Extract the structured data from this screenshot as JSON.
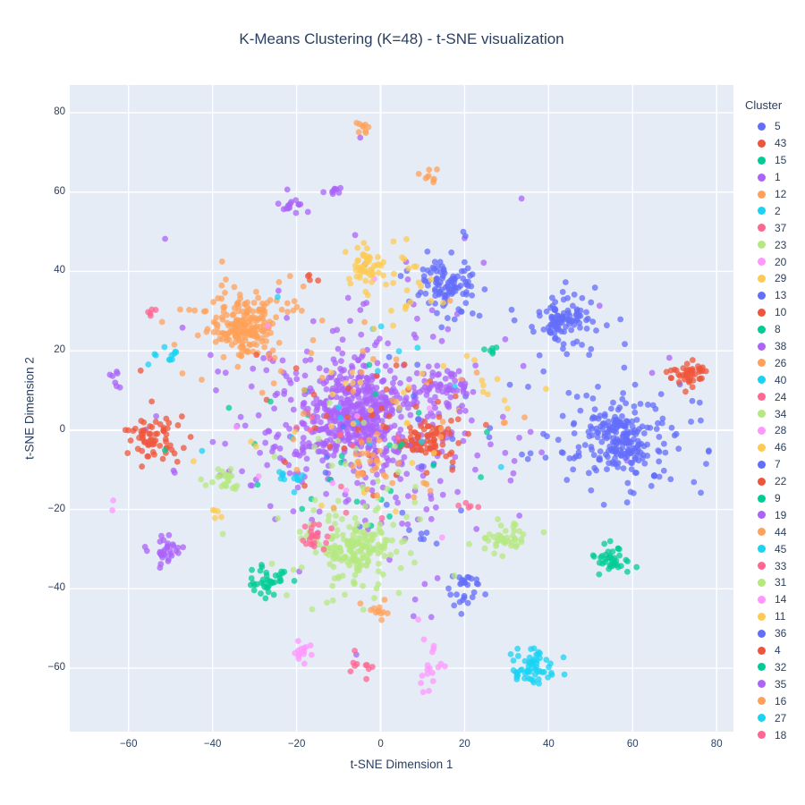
{
  "chart_data": {
    "type": "scatter",
    "title": "K-Means Clustering (K=48) - t-SNE visualization",
    "xlabel": "t-SNE Dimension 1",
    "ylabel": "t-SNE Dimension 2",
    "legend_title": "Cluster",
    "xlim": [
      -74,
      84
    ],
    "ylim": [
      -76,
      87
    ],
    "xticks": [
      -60,
      -40,
      -20,
      0,
      20,
      40,
      60,
      80
    ],
    "xtick_labels": [
      "−60",
      "−40",
      "−20",
      "0",
      "20",
      "40",
      "60",
      "80"
    ],
    "yticks": [
      -60,
      -40,
      -20,
      0,
      20,
      40,
      60,
      80
    ],
    "ytick_labels": [
      "−60",
      "−40",
      "−20",
      "0",
      "20",
      "40",
      "60",
      "80"
    ],
    "grid": true,
    "legend_position": "right",
    "colors": {
      "plot_background": "#E5ECF6",
      "grid": "#FFFFFF",
      "text": "#2a3f5f",
      "paper_background": "#FFFFFF"
    },
    "palette": [
      "#636EFA",
      "#EF553B",
      "#00CC96",
      "#AB63FA",
      "#FFA15A",
      "#19D3F3",
      "#FF6692",
      "#B6E880",
      "#FF97FF",
      "#FECB52"
    ],
    "marker": {
      "size": 6.8,
      "opacity": 0.75
    },
    "legend_entries": [
      {
        "label": "5",
        "color": "#636EFA"
      },
      {
        "label": "43",
        "color": "#EF553B"
      },
      {
        "label": "15",
        "color": "#00CC96"
      },
      {
        "label": "1",
        "color": "#AB63FA"
      },
      {
        "label": "12",
        "color": "#FFA15A"
      },
      {
        "label": "2",
        "color": "#19D3F3"
      },
      {
        "label": "37",
        "color": "#FF6692"
      },
      {
        "label": "23",
        "color": "#B6E880"
      },
      {
        "label": "20",
        "color": "#FF97FF"
      },
      {
        "label": "29",
        "color": "#FECB52"
      },
      {
        "label": "13",
        "color": "#636EFA"
      },
      {
        "label": "10",
        "color": "#EF553B"
      },
      {
        "label": "8",
        "color": "#00CC96"
      },
      {
        "label": "38",
        "color": "#AB63FA"
      },
      {
        "label": "26",
        "color": "#FFA15A"
      },
      {
        "label": "40",
        "color": "#19D3F3"
      },
      {
        "label": "24",
        "color": "#FF6692"
      },
      {
        "label": "34",
        "color": "#B6E880"
      },
      {
        "label": "28",
        "color": "#FF97FF"
      },
      {
        "label": "46",
        "color": "#FECB52"
      },
      {
        "label": "7",
        "color": "#636EFA"
      },
      {
        "label": "22",
        "color": "#EF553B"
      },
      {
        "label": "9",
        "color": "#00CC96"
      },
      {
        "label": "19",
        "color": "#AB63FA"
      },
      {
        "label": "44",
        "color": "#FFA15A"
      },
      {
        "label": "45",
        "color": "#19D3F3"
      },
      {
        "label": "33",
        "color": "#FF6692"
      },
      {
        "label": "31",
        "color": "#B6E880"
      },
      {
        "label": "14",
        "color": "#FF97FF"
      },
      {
        "label": "11",
        "color": "#FECB52"
      },
      {
        "label": "36",
        "color": "#636EFA"
      },
      {
        "label": "4",
        "color": "#EF553B"
      },
      {
        "label": "32",
        "color": "#00CC96"
      },
      {
        "label": "35",
        "color": "#AB63FA"
      },
      {
        "label": "16",
        "color": "#FFA15A"
      },
      {
        "label": "27",
        "color": "#19D3F3"
      },
      {
        "label": "18",
        "color": "#FF6692"
      }
    ],
    "clusters": [
      {
        "color": "#AB63FA",
        "cx": -5,
        "cy": 4,
        "sx": 6.5,
        "sy": 5.5,
        "n": 380
      },
      {
        "color": "#AB63FA",
        "cx": -5,
        "cy": 2,
        "sx": 16,
        "sy": 13,
        "n": 320
      },
      {
        "color": "#AB63FA",
        "cx": 0,
        "cy": 8,
        "sx": 30,
        "sy": 24,
        "n": 40
      },
      {
        "color": "#FFA15A",
        "cx": -33,
        "cy": 26,
        "sx": 3.2,
        "sy": 3.0,
        "n": 150
      },
      {
        "color": "#FFA15A",
        "cx": -33,
        "cy": 26,
        "sx": 7.5,
        "sy": 6.5,
        "n": 85
      },
      {
        "color": "#636EFA",
        "cx": 57,
        "cy": -3,
        "sx": 4.5,
        "sy": 4.2,
        "n": 150
      },
      {
        "color": "#636EFA",
        "cx": 57,
        "cy": -3,
        "sx": 9.5,
        "sy": 8.5,
        "n": 110
      },
      {
        "color": "#636EFA",
        "cx": 16,
        "cy": 37,
        "sx": 2.8,
        "sy": 2.6,
        "n": 65
      },
      {
        "color": "#636EFA",
        "cx": 16,
        "cy": 37,
        "sx": 6.0,
        "sy": 5.5,
        "n": 40
      },
      {
        "color": "#636EFA",
        "cx": 43,
        "cy": 28,
        "sx": 2.6,
        "sy": 2.4,
        "n": 75
      },
      {
        "color": "#636EFA",
        "cx": 43,
        "cy": 28,
        "sx": 5.5,
        "sy": 5.0,
        "n": 32
      },
      {
        "color": "#636EFA",
        "cx": 20,
        "cy": -40,
        "sx": 2.3,
        "sy": 2.0,
        "n": 28
      },
      {
        "color": "#636EFA",
        "cx": 10,
        "cy": -27,
        "sx": 1.5,
        "sy": 1.2,
        "n": 6
      },
      {
        "color": "#636EFA",
        "cx": 3,
        "cy": -2,
        "sx": 17,
        "sy": 13,
        "n": 22
      },
      {
        "color": "#EF553B",
        "cx": -54,
        "cy": -2,
        "sx": 3.0,
        "sy": 2.8,
        "n": 55
      },
      {
        "color": "#EF553B",
        "cx": -53,
        "cy": 0,
        "sx": 6.5,
        "sy": 5.5,
        "n": 12
      },
      {
        "color": "#EF553B",
        "cx": 12,
        "cy": -2,
        "sx": 2.6,
        "sy": 2.4,
        "n": 55
      },
      {
        "color": "#EF553B",
        "cx": 7,
        "cy": -1,
        "sx": 6.5,
        "sy": 4.5,
        "n": 35
      },
      {
        "color": "#EF553B",
        "cx": 73,
        "cy": 14,
        "sx": 2.0,
        "sy": 1.7,
        "n": 45
      },
      {
        "color": "#EF553B",
        "cx": -16,
        "cy": 38,
        "sx": 0.9,
        "sy": 0.8,
        "n": 4
      },
      {
        "color": "#EF553B",
        "cx": -2,
        "cy": 6,
        "sx": 15,
        "sy": 13,
        "n": 22
      },
      {
        "color": "#00CC96",
        "cx": -27,
        "cy": -38,
        "sx": 2.4,
        "sy": 2.0,
        "n": 38
      },
      {
        "color": "#00CC96",
        "cx": 54,
        "cy": -33,
        "sx": 2.1,
        "sy": 1.8,
        "n": 38
      },
      {
        "color": "#00CC96",
        "cx": 26,
        "cy": 20,
        "sx": 1.1,
        "sy": 0.9,
        "n": 6
      },
      {
        "color": "#00CC96",
        "cx": -5,
        "cy": -6,
        "sx": 14,
        "sy": 12,
        "n": 26
      },
      {
        "color": "#B6E880",
        "cx": -6,
        "cy": -30,
        "sx": 3.6,
        "sy": 3.2,
        "n": 110
      },
      {
        "color": "#B6E880",
        "cx": -6,
        "cy": -29,
        "sx": 8.5,
        "sy": 7.0,
        "n": 85
      },
      {
        "color": "#B6E880",
        "cx": 31,
        "cy": -27,
        "sx": 2.7,
        "sy": 2.3,
        "n": 40
      },
      {
        "color": "#B6E880",
        "cx": -37,
        "cy": -12,
        "sx": 1.9,
        "sy": 1.5,
        "n": 24
      },
      {
        "color": "#B6E880",
        "cx": -2,
        "cy": -16,
        "sx": 13,
        "sy": 9,
        "n": 22
      },
      {
        "color": "#19D3F3",
        "cx": 36,
        "cy": -60,
        "sx": 3.2,
        "sy": 2.6,
        "n": 60
      },
      {
        "color": "#19D3F3",
        "cx": -21,
        "cy": -12,
        "sx": 1.7,
        "sy": 1.3,
        "n": 12
      },
      {
        "color": "#19D3F3",
        "cx": -51,
        "cy": 17.5,
        "sx": 1.5,
        "sy": 1.9,
        "n": 11
      },
      {
        "color": "#19D3F3",
        "cx": 2,
        "cy": 2,
        "sx": 17,
        "sy": 13,
        "n": 16
      },
      {
        "color": "#FF6692",
        "cx": -16,
        "cy": -27,
        "sx": 1.9,
        "sy": 1.6,
        "n": 22
      },
      {
        "color": "#FF6692",
        "cx": -4,
        "cy": -60,
        "sx": 1.3,
        "sy": 1.8,
        "n": 10
      },
      {
        "color": "#FF6692",
        "cx": -55,
        "cy": 30,
        "sx": 1.1,
        "sy": 0.9,
        "n": 5
      },
      {
        "color": "#FF6692",
        "cx": 20,
        "cy": -19,
        "sx": 1.8,
        "sy": 1.1,
        "n": 5
      },
      {
        "color": "#FF6692",
        "cx": -6,
        "cy": -2,
        "sx": 14,
        "sy": 12,
        "n": 14
      },
      {
        "color": "#FF97FF",
        "cx": -19,
        "cy": -56,
        "sx": 1.7,
        "sy": 1.6,
        "n": 14
      },
      {
        "color": "#FF97FF",
        "cx": 11.5,
        "cy": -58,
        "sx": 1.7,
        "sy": 5.0,
        "n": 18
      },
      {
        "color": "#FF97FF",
        "cx": -64,
        "cy": -20,
        "sx": 0.6,
        "sy": 0.9,
        "n": 2
      },
      {
        "color": "#FF97FF",
        "cx": -8,
        "cy": 2,
        "sx": 18,
        "sy": 13,
        "n": 9
      },
      {
        "color": "#FECB52",
        "cx": -4,
        "cy": 41,
        "sx": 2.3,
        "sy": 2.6,
        "n": 40
      },
      {
        "color": "#FECB52",
        "cx": 3,
        "cy": 37,
        "sx": 8,
        "sy": 6,
        "n": 32
      },
      {
        "color": "#FECB52",
        "cx": -39,
        "cy": -21.5,
        "sx": 1.1,
        "sy": 0.9,
        "n": 5
      },
      {
        "color": "#FECB52",
        "cx": 28,
        "cy": 12,
        "sx": 5,
        "sy": 4,
        "n": 10
      },
      {
        "color": "#FECB52",
        "cx": -2,
        "cy": 2,
        "sx": 15,
        "sy": 12,
        "n": 26
      },
      {
        "color": "#FFA15A",
        "cx": -4,
        "cy": 76,
        "sx": 1.1,
        "sy": 1.4,
        "n": 9
      },
      {
        "color": "#FFA15A",
        "cx": 11,
        "cy": 64,
        "sx": 1.1,
        "sy": 1.0,
        "n": 9
      },
      {
        "color": "#FFA15A",
        "cx": -2,
        "cy": -45,
        "sx": 1.9,
        "sy": 1.4,
        "n": 12
      },
      {
        "color": "#FFA15A",
        "cx": -3,
        "cy": -8,
        "sx": 2.6,
        "sy": 2.2,
        "n": 20
      },
      {
        "color": "#FFA15A",
        "cx": 0,
        "cy": 4,
        "sx": 15,
        "sy": 13,
        "n": 36
      },
      {
        "color": "#AB63FA",
        "cx": 16,
        "cy": 11,
        "sx": 2.9,
        "sy": 2.5,
        "n": 45
      },
      {
        "color": "#AB63FA",
        "cx": -51,
        "cy": -31,
        "sx": 2.3,
        "sy": 2.1,
        "n": 32
      },
      {
        "color": "#AB63FA",
        "cx": -21,
        "cy": 57,
        "sx": 1.9,
        "sy": 1.5,
        "n": 16
      },
      {
        "color": "#AB63FA",
        "cx": -11,
        "cy": 60,
        "sx": 1.3,
        "sy": 1.1,
        "n": 9
      },
      {
        "color": "#AB63FA",
        "cx": -63,
        "cy": 12.5,
        "sx": 0.8,
        "sy": 1.8,
        "n": 7
      },
      {
        "color": "#AB63FA",
        "cx": -4.5,
        "cy": 73,
        "sx": 0.4,
        "sy": 0.4,
        "n": 1
      },
      {
        "color": "#AB63FA",
        "cx": 34,
        "cy": 59,
        "sx": 0.5,
        "sy": 0.5,
        "n": 1
      },
      {
        "color": "#AB63FA",
        "cx": 68.5,
        "cy": 18,
        "sx": 0.4,
        "sy": 0.4,
        "n": 1
      },
      {
        "color": "#AB63FA",
        "cx": 65,
        "cy": 15,
        "sx": 0.4,
        "sy": 0.4,
        "n": 1
      }
    ]
  }
}
